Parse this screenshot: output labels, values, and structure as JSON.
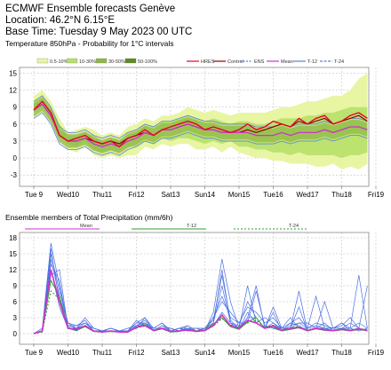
{
  "header": {
    "line1": "ECMWF Ensemble forecasts Genève",
    "line2": "Location: 46.2°N 6.15°E",
    "line3": "Base Time: Tuesday  9 May 2023 00 UTC",
    "line4": "Temperature 850hPa - Probability for 1°C intervals"
  },
  "colors": {
    "band1": "#e8f5a3",
    "band2": "#b7e06a",
    "band3": "#8fb848",
    "band4": "#5e8a22",
    "hres": "#e8002a",
    "control": "#8b0000",
    "ens": "#5b7fd9",
    "mean": "#cc33cc",
    "t12": "#2e9f2e",
    "t24": "#2e9f2e",
    "precip_member": "#4a6fe3"
  },
  "chart_data": [
    {
      "type": "area",
      "legend": {
        "bands": [
          "0.5-10%",
          "10-30%",
          "30-50%",
          "50-100%"
        ],
        "lines": [
          "HRES",
          "Control",
          "ENS",
          "Mean",
          "T-12",
          "T-24"
        ]
      },
      "x_labels": [
        "Tue 9",
        "Wed10",
        "Thu11",
        "Fri12",
        "Sat13",
        "Sun14",
        "Mon15",
        "Tue16",
        "Wed17",
        "Thu18",
        "Fri19"
      ],
      "highlight_label": "Sun14",
      "ylim": [
        -5,
        16
      ],
      "yticks": [
        -3,
        0,
        3,
        6,
        9,
        12,
        15
      ],
      "grid": true,
      "x_days": [
        0,
        0.25,
        0.5,
        0.75,
        1,
        1.25,
        1.5,
        1.75,
        2,
        2.25,
        2.5,
        2.75,
        3,
        3.25,
        3.5,
        3.75,
        4,
        4.25,
        4.5,
        4.75,
        5,
        5.25,
        5.5,
        5.75,
        6,
        6.25,
        6.5,
        6.75,
        7,
        7.25,
        7.5,
        7.75,
        8,
        8.25,
        8.5,
        8.75,
        9,
        9.25,
        9.5,
        9.75
      ],
      "band_outer_low": [
        7,
        8,
        6,
        3,
        1.5,
        1,
        2,
        0.5,
        0,
        0.5,
        0,
        0.5,
        0.5,
        2,
        1.5,
        2.5,
        2,
        2.5,
        2.5,
        1.5,
        1.5,
        2,
        1,
        2,
        1,
        0.5,
        0,
        0,
        -0.5,
        -0.5,
        -1,
        -1,
        -1,
        -1.5,
        -1.5,
        -1,
        -2,
        -1.5,
        -2,
        -1
      ],
      "band_outer_high": [
        11,
        12,
        10,
        7,
        4.5,
        5,
        5.5,
        5,
        4,
        4.5,
        4,
        5.5,
        6,
        7,
        6.5,
        7.5,
        7.5,
        8,
        9,
        8.5,
        8,
        8.5,
        8,
        7.5,
        8,
        8,
        8,
        8,
        8.5,
        9,
        9,
        9.5,
        10,
        10,
        10.5,
        11,
        11,
        12,
        14,
        15
      ],
      "band_mid_low": [
        8,
        9,
        7,
        4,
        2.5,
        2,
        3,
        1.5,
        1,
        1.5,
        1,
        2,
        2,
        3,
        2.5,
        3.5,
        3,
        3.5,
        3.5,
        3,
        2.5,
        3,
        2.5,
        3,
        2,
        2,
        1.5,
        1.5,
        1,
        1,
        0.5,
        1,
        0.5,
        0.5,
        0.5,
        0.5,
        0,
        0.5,
        0.5,
        1
      ],
      "band_mid_high": [
        10,
        11,
        9,
        6,
        4,
        4,
        4.5,
        4,
        3,
        3.5,
        3,
        4.5,
        5,
        6,
        5.5,
        6.5,
        6.5,
        7,
        7.5,
        7,
        6.5,
        7,
        6.5,
        6,
        6.5,
        6.5,
        6,
        6,
        6.5,
        7,
        7,
        7,
        7.5,
        7.5,
        8,
        8,
        8.5,
        9,
        9,
        9
      ],
      "hres": [
        8.5,
        10,
        8,
        4,
        3,
        3.5,
        4,
        3,
        2.5,
        3,
        2,
        3.5,
        4,
        5,
        4,
        5,
        5.5,
        6,
        6.5,
        6,
        5,
        5.5,
        5,
        4.5,
        5,
        6,
        5,
        5.5,
        6.5,
        6,
        5.5,
        7,
        6,
        7,
        7.5,
        6,
        6.5,
        7.5,
        8,
        7
      ],
      "control": [
        8.5,
        9.5,
        7.5,
        4,
        3,
        3,
        3.5,
        3,
        2.5,
        3,
        2.5,
        3.5,
        4,
        4.5,
        4,
        5,
        5,
        5.5,
        6,
        5.5,
        5,
        5,
        4.5,
        4.5,
        4.5,
        5,
        4.5,
        5,
        5.5,
        6,
        5.5,
        6.5,
        6,
        6.5,
        7,
        6,
        6.5,
        7,
        7.5,
        6.5
      ],
      "mean": [
        8.5,
        9.5,
        7.5,
        4,
        3,
        3,
        3.5,
        2.5,
        2,
        2.5,
        2,
        3,
        3.5,
        4.5,
        4,
        5,
        5,
        5.5,
        6,
        5.5,
        5,
        5,
        4.5,
        4.5,
        4.5,
        4.5,
        4,
        4,
        4,
        4.5,
        4,
        4.5,
        4.5,
        4.5,
        5,
        4.5,
        5,
        5.5,
        5.5,
        5
      ]
    },
    {
      "type": "line",
      "title": "Ensemble members of Total Precipitation (mm/6h)",
      "legend": [
        "Mean",
        "T-12",
        "T-24"
      ],
      "x_labels": [
        "Tue 9",
        "Wed10",
        "Thu11",
        "Fri12",
        "Sat13",
        "Sun14",
        "Mon15",
        "Tue16",
        "Wed17",
        "Thu18",
        "Fri19"
      ],
      "highlight_label": "Sun14",
      "ylim": [
        -2,
        19
      ],
      "yticks": [
        0,
        3,
        6,
        9,
        12,
        15,
        18
      ],
      "grid": true,
      "x_days": [
        0,
        0.25,
        0.5,
        0.75,
        1,
        1.25,
        1.5,
        1.75,
        2,
        2.25,
        2.5,
        2.75,
        3,
        3.25,
        3.5,
        3.75,
        4,
        4.25,
        4.5,
        4.75,
        5,
        5.25,
        5.5,
        5.75,
        6,
        6.25,
        6.5,
        6.75,
        7,
        7.25,
        7.5,
        7.75,
        8,
        8.25,
        8.5,
        8.75,
        9,
        9.25,
        9.5,
        9.75
      ],
      "mean": [
        0,
        0.5,
        12,
        6,
        1,
        0.8,
        1.5,
        0.5,
        0.3,
        0.5,
        0.3,
        0.3,
        1.2,
        1.5,
        0.6,
        1,
        0.4,
        0.5,
        0.7,
        0.4,
        0.6,
        1.5,
        3.5,
        1.5,
        1,
        2.5,
        2,
        1,
        1.5,
        0.6,
        1,
        1.2,
        0.6,
        1,
        0.7,
        0.6,
        0.8,
        0.6,
        0.9,
        0.6
      ],
      "t12": [
        0,
        0.4,
        10,
        7,
        1,
        0.6,
        1.3,
        0.4,
        0.3,
        0.4,
        0.3,
        0.3,
        1.3,
        1.7,
        0.5,
        0.9,
        0.3,
        0.4,
        0.8,
        0.5,
        0.7,
        1.8,
        3,
        1.3,
        0.8,
        2.2,
        3,
        1,
        1.2,
        0.5,
        0.8,
        1.1,
        0.5,
        0.9,
        0.6,
        0.5,
        0.7,
        0.5,
        0.8,
        0.5
      ],
      "t24": [
        0,
        0.3,
        8,
        6.5,
        1.2,
        0.8,
        1.5,
        0.5,
        0.4,
        0.5,
        0.3,
        0.3,
        1.1,
        1.4,
        0.7,
        1.1,
        0.4,
        0.5,
        0.6,
        0.4,
        0.5,
        1.4,
        2.8,
        1.7,
        1.1,
        2,
        2.5,
        1.2,
        1.6,
        0.7,
        1.1,
        1.3,
        0.7,
        1.1,
        0.8,
        0.7,
        0.9,
        0.7,
        1,
        0.7
      ],
      "members": [
        [
          0,
          0.5,
          15,
          8,
          2,
          1,
          3,
          1,
          0.5,
          1,
          0.5,
          0.5,
          2,
          3,
          1,
          2,
          0.5,
          1,
          1.5,
          0.5,
          1,
          3,
          7,
          3,
          2,
          5,
          4,
          2,
          3,
          1,
          2,
          3,
          1,
          2,
          1.5,
          1,
          2,
          1,
          2,
          1
        ],
        [
          0,
          1,
          17,
          9,
          1.5,
          1.5,
          2.5,
          0.5,
          0.5,
          0.5,
          0.5,
          1,
          1.5,
          2,
          0.5,
          1.5,
          1,
          0.5,
          1,
          1,
          0.5,
          4,
          14,
          6,
          1,
          3,
          9,
          1,
          2,
          0.5,
          1,
          8,
          0.5,
          1,
          2,
          0.5,
          1,
          1,
          11,
          1
        ],
        [
          0,
          0.5,
          13,
          10,
          1,
          0.5,
          1.5,
          0.5,
          0.5,
          1,
          0.5,
          0.5,
          2.5,
          1.5,
          1,
          1,
          0.5,
          1,
          0.5,
          0.5,
          1,
          2,
          9,
          2,
          1.5,
          6,
          3,
          1,
          5,
          1,
          3,
          1,
          1,
          7,
          1,
          1,
          1.5,
          3,
          1,
          9
        ],
        [
          0,
          0.5,
          16,
          6,
          1.5,
          1,
          2,
          1,
          0.5,
          0.5,
          0.5,
          0.5,
          1,
          3,
          0.5,
          1.5,
          0.5,
          0.5,
          1.5,
          0.5,
          1,
          2.5,
          11,
          2.5,
          1,
          4,
          2,
          3,
          2,
          1,
          1,
          2,
          2,
          1,
          1,
          0.5,
          1,
          0.5,
          1,
          0.5
        ],
        [
          0,
          1,
          11,
          12,
          1,
          1,
          1.5,
          0.5,
          0.5,
          1,
          0.5,
          0.5,
          1.5,
          2.5,
          0.5,
          1,
          1,
          0.5,
          1,
          0.5,
          0.5,
          3,
          6,
          4,
          2,
          2,
          8,
          1.5,
          1,
          0.5,
          2,
          1.5,
          0.5,
          1,
          6,
          1,
          1,
          1,
          0.5,
          1
        ],
        [
          0,
          0.5,
          14,
          7,
          2,
          1.5,
          2,
          1,
          0.5,
          0.5,
          0.5,
          0.5,
          2,
          2,
          1,
          2,
          0.5,
          1,
          1,
          1,
          1,
          2,
          12,
          2,
          1,
          3,
          3,
          1,
          4,
          0.5,
          1.5,
          2,
          1,
          1.5,
          1,
          1,
          2,
          0.5,
          1,
          0.5
        ],
        [
          0,
          0.5,
          12,
          5,
          1,
          1,
          2,
          0.5,
          0.5,
          1,
          0.5,
          0.5,
          1,
          2,
          0.5,
          1,
          0.5,
          0.5,
          1,
          0.5,
          0.5,
          1.5,
          4,
          2,
          1,
          9,
          2,
          1,
          1.5,
          1,
          1,
          5,
          0.5,
          1,
          1,
          0.5,
          1,
          2,
          1,
          0.5
        ]
      ]
    }
  ]
}
